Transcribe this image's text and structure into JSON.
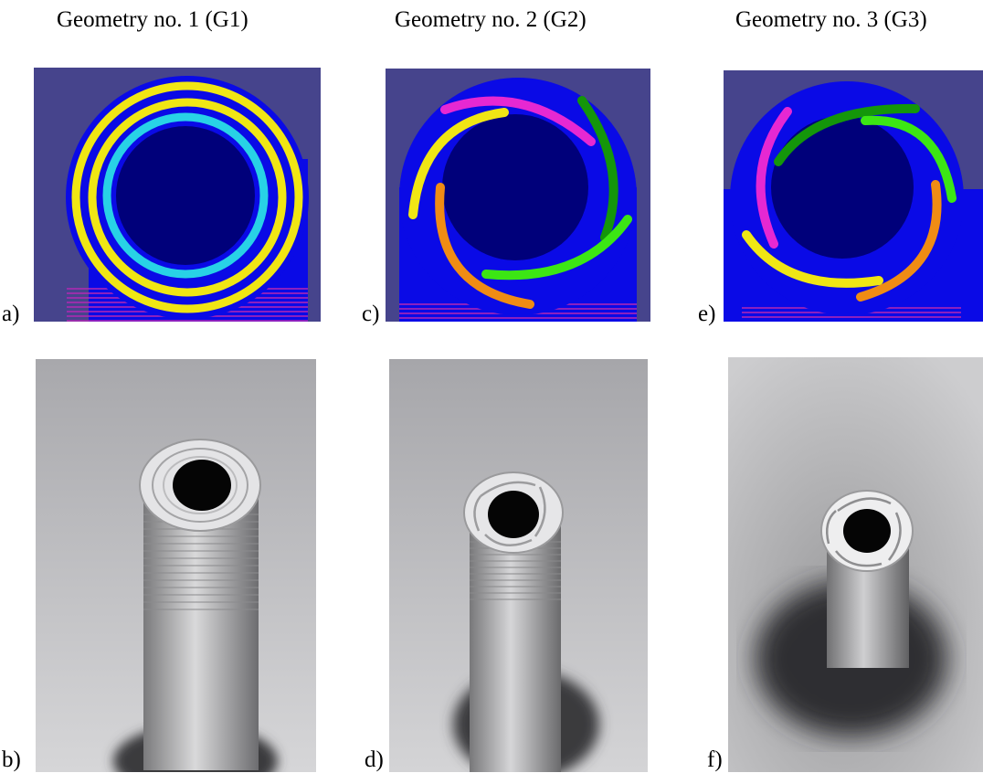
{
  "titles": {
    "g1": "Geometry no. 1 (G1)",
    "g2": "Geometry no. 2 (G2)",
    "g3": "Geometry no. 3 (G3)"
  },
  "labels": {
    "a": "a)",
    "b": "b)",
    "c": "c)",
    "d": "d)",
    "e": "e)",
    "f": "f)"
  },
  "colors": {
    "cad_background": "#46448c",
    "cad_body": "#0a0ae6",
    "cad_bore": "#00007a",
    "thread": "#b428b4",
    "g1_outer_ring": "#f0e614",
    "g1_inner_ring": "#28d2e6",
    "vane_magenta": "#e628d2",
    "vane_green_dark": "#14960a",
    "vane_green_light": "#3ce614",
    "vane_orange": "#f08c14",
    "vane_yellow": "#f0e614",
    "photo_background": "#c2c2c4"
  }
}
